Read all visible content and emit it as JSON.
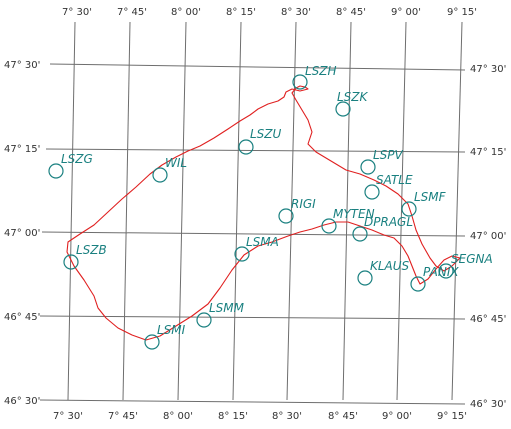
{
  "colors": {
    "background": "#ffffff",
    "grid": "#6e6e6e",
    "route": "#e02020",
    "waypoint": "#1a8080",
    "coord_text": "#333333"
  },
  "map": {
    "lon_labels": [
      "7° 30'",
      "7° 45'",
      "8° 00'",
      "8° 15'",
      "8° 30'",
      "8° 45'",
      "9° 00'",
      "9° 15'"
    ],
    "lat_labels": [
      "47° 30'",
      "47° 15'",
      "47° 00'",
      "46° 45'",
      "46° 30'"
    ],
    "waypoints": [
      {
        "name": "LSZH",
        "icon": "waypoint-circle-icon"
      },
      {
        "name": "LSZK",
        "icon": "waypoint-circle-icon"
      },
      {
        "name": "LSZU",
        "icon": "waypoint-circle-icon"
      },
      {
        "name": "LSZG",
        "icon": "waypoint-circle-icon"
      },
      {
        "name": "WIL",
        "icon": "waypoint-circle-icon"
      },
      {
        "name": "LSPV",
        "icon": "waypoint-circle-icon"
      },
      {
        "name": "SATLE",
        "icon": "waypoint-circle-icon"
      },
      {
        "name": "LSMF",
        "icon": "waypoint-circle-icon"
      },
      {
        "name": "RIGI",
        "icon": "waypoint-circle-icon"
      },
      {
        "name": "MYTEN",
        "icon": "waypoint-circle-icon"
      },
      {
        "name": "DPRAGL",
        "icon": "waypoint-circle-icon"
      },
      {
        "name": "LSZB",
        "icon": "waypoint-circle-icon"
      },
      {
        "name": "LSMA",
        "icon": "waypoint-circle-icon"
      },
      {
        "name": "KLAUS",
        "icon": "waypoint-circle-icon"
      },
      {
        "name": "PANIX",
        "icon": "waypoint-circle-icon"
      },
      {
        "name": "SEGNA",
        "icon": "waypoint-circle-icon"
      },
      {
        "name": "LSMM",
        "icon": "waypoint-circle-icon"
      },
      {
        "name": "LSMI",
        "icon": "waypoint-circle-icon"
      }
    ]
  }
}
